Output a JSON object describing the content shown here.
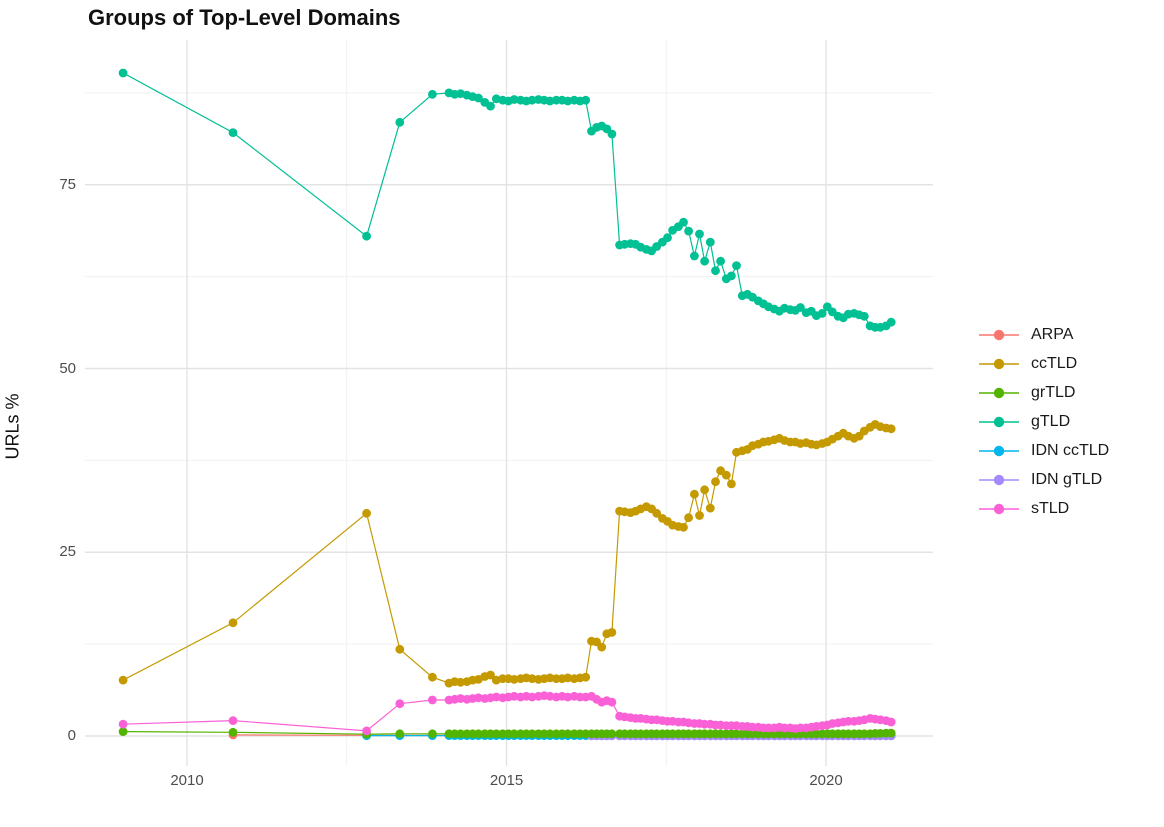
{
  "title": "Groups of Top-Level Domains",
  "axes": {
    "y_label": "URLs %",
    "x_ticks": [
      "2010",
      "2015",
      "2020"
    ],
    "x_tick_values": [
      2010,
      2015,
      2020
    ],
    "y_ticks": [
      "0",
      "25",
      "50",
      "75"
    ],
    "y_tick_values": [
      0,
      25,
      50,
      75
    ]
  },
  "chart_data": {
    "type": "line",
    "title": "Groups of Top-Level Domains",
    "xlabel": "",
    "ylabel": "URLs %",
    "x_range_shown": [
      2008.4,
      2021.7
    ],
    "y_range_shown": [
      -4.5,
      94.8
    ],
    "legend_position": "right",
    "grid": {
      "x_major": [
        2010,
        2015,
        2020
      ],
      "x_minor": [
        2012.5,
        2017.5
      ],
      "y_major": [
        0,
        25,
        50,
        75
      ],
      "y_minor": [
        12.5,
        37.5,
        62.5,
        87.5
      ]
    },
    "x": [
      2009.0,
      2010.72,
      2012.81,
      2013.33,
      2013.84,
      2014.1,
      2014.19,
      2014.28,
      2014.38,
      2014.47,
      2014.56,
      2014.66,
      2014.75,
      2014.84,
      2014.94,
      2015.03,
      2015.12,
      2015.22,
      2015.31,
      2015.4,
      2015.5,
      2015.59,
      2015.68,
      2015.78,
      2015.87,
      2015.96,
      2016.06,
      2016.15,
      2016.24,
      2016.33,
      2016.41,
      2016.49,
      2016.57,
      2016.65,
      2016.77,
      2016.85,
      2016.94,
      2017.02,
      2017.1,
      2017.19,
      2017.27,
      2017.35,
      2017.44,
      2017.52,
      2017.6,
      2017.69,
      2017.77,
      2017.85,
      2017.94,
      2018.02,
      2018.1,
      2018.19,
      2018.27,
      2018.35,
      2018.44,
      2018.52,
      2018.6,
      2018.69,
      2018.77,
      2018.85,
      2018.94,
      2019.02,
      2019.1,
      2019.19,
      2019.27,
      2019.35,
      2019.44,
      2019.52,
      2019.6,
      2019.69,
      2019.77,
      2019.85,
      2019.94,
      2020.02,
      2020.1,
      2020.19,
      2020.27,
      2020.35,
      2020.44,
      2020.52,
      2020.6,
      2020.69,
      2020.77,
      2020.85,
      2020.94,
      2021.02
    ],
    "draw_order": [
      "ARPA",
      "IDN ccTLD",
      "IDN gTLD",
      "grTLD",
      "gTLD",
      "ccTLD",
      "sTLD"
    ],
    "series": [
      {
        "name": "ARPA",
        "color": "#F8766D",
        "start_index": 1,
        "values": [
          0.15,
          0.1,
          0.1,
          0.1,
          0.1,
          0.1,
          0.1,
          0.1,
          0.1,
          0.1,
          0.1,
          0.1,
          0.1,
          0.1,
          0.1,
          0.1,
          0.1,
          0.1,
          0.1,
          0.1,
          0.1,
          0.1,
          0.1,
          0.1,
          0.1,
          0.1,
          0.1,
          0.1,
          0.1,
          0.1,
          0.1,
          0.1,
          0.1,
          0.1,
          0.1,
          0.1,
          0.1,
          0.1,
          0.1,
          0.1,
          0.1,
          0.1,
          0.1,
          0.1,
          0.1,
          0.1,
          0.1,
          0.1,
          0.1,
          0.1,
          0.1,
          0.1,
          0.1,
          0.1,
          0.1,
          0.1,
          0.1,
          0.1,
          0.1,
          0.1,
          0.1,
          0.1,
          0.1,
          0.1,
          0.1,
          0.1,
          0.1,
          0.1,
          0.1,
          0.1,
          0.1,
          0.1,
          0.1,
          0.1,
          0.1,
          0.1,
          0.1,
          0.1,
          0.1,
          0.1,
          0.1,
          0.1,
          0.1,
          0.1,
          0.1
        ]
      },
      {
        "name": "ccTLD",
        "color": "#C49A00",
        "start_index": 0,
        "values": [
          7.6,
          15.4,
          30.3,
          11.8,
          8.0,
          7.2,
          7.4,
          7.3,
          7.4,
          7.6,
          7.7,
          8.1,
          8.3,
          7.6,
          7.8,
          7.8,
          7.7,
          7.8,
          7.9,
          7.8,
          7.7,
          7.8,
          7.9,
          7.8,
          7.8,
          7.9,
          7.8,
          7.9,
          8.0,
          12.9,
          12.8,
          12.1,
          13.9,
          14.1,
          30.6,
          30.5,
          30.4,
          30.6,
          30.9,
          31.2,
          30.9,
          30.3,
          29.6,
          29.2,
          28.7,
          28.5,
          28.4,
          29.7,
          32.9,
          30.0,
          33.5,
          31.0,
          34.6,
          36.1,
          35.5,
          34.3,
          38.6,
          38.8,
          39.0,
          39.5,
          39.7,
          40.0,
          40.1,
          40.3,
          40.5,
          40.2,
          40.0,
          40.0,
          39.8,
          39.9,
          39.7,
          39.6,
          39.8,
          40.0,
          40.4,
          40.8,
          41.2,
          40.8,
          40.5,
          40.8,
          41.5,
          42.0,
          42.4,
          42.1,
          41.9,
          41.8
        ]
      },
      {
        "name": "grTLD",
        "color": "#53B400",
        "start_index": 0,
        "values": [
          0.6,
          0.5,
          0.25,
          0.3,
          0.3,
          0.3,
          0.3,
          0.3,
          0.3,
          0.3,
          0.3,
          0.3,
          0.3,
          0.3,
          0.3,
          0.3,
          0.3,
          0.3,
          0.3,
          0.3,
          0.3,
          0.3,
          0.3,
          0.3,
          0.3,
          0.3,
          0.3,
          0.3,
          0.3,
          0.3,
          0.3,
          0.3,
          0.3,
          0.3,
          0.3,
          0.3,
          0.3,
          0.3,
          0.3,
          0.3,
          0.3,
          0.3,
          0.3,
          0.3,
          0.3,
          0.3,
          0.3,
          0.3,
          0.3,
          0.3,
          0.3,
          0.3,
          0.3,
          0.3,
          0.3,
          0.3,
          0.3,
          0.3,
          0.3,
          0.3,
          0.3,
          0.3,
          0.3,
          0.3,
          0.3,
          0.3,
          0.3,
          0.3,
          0.3,
          0.3,
          0.3,
          0.3,
          0.3,
          0.3,
          0.3,
          0.3,
          0.3,
          0.3,
          0.3,
          0.3,
          0.3,
          0.3,
          0.35,
          0.35,
          0.4,
          0.4
        ]
      },
      {
        "name": "gTLD",
        "color": "#00C094",
        "start_index": 0,
        "values": [
          90.2,
          82.1,
          68.0,
          83.5,
          87.3,
          87.5,
          87.3,
          87.4,
          87.2,
          87.0,
          86.8,
          86.2,
          85.7,
          86.7,
          86.5,
          86.4,
          86.6,
          86.5,
          86.4,
          86.5,
          86.6,
          86.5,
          86.4,
          86.5,
          86.5,
          86.4,
          86.5,
          86.4,
          86.5,
          82.3,
          82.8,
          83.0,
          82.6,
          81.9,
          66.8,
          66.9,
          67.0,
          66.9,
          66.5,
          66.2,
          66.0,
          66.6,
          67.2,
          67.8,
          68.8,
          69.3,
          69.9,
          68.7,
          65.3,
          68.3,
          64.6,
          67.2,
          63.3,
          64.6,
          62.2,
          62.6,
          64.0,
          59.9,
          60.1,
          59.7,
          59.2,
          58.8,
          58.4,
          58.1,
          57.8,
          58.2,
          58.0,
          57.9,
          58.3,
          57.6,
          57.8,
          57.2,
          57.5,
          58.4,
          57.7,
          57.1,
          56.9,
          57.4,
          57.5,
          57.3,
          57.1,
          55.8,
          55.6,
          55.6,
          55.8,
          56.3
        ]
      },
      {
        "name": "IDN ccTLD",
        "color": "#00B6EB",
        "start_index": 2,
        "values": [
          0.05,
          0.05,
          0.05,
          0.05,
          0.05,
          0.05,
          0.05,
          0.05,
          0.05,
          0.05,
          0.05,
          0.05,
          0.05,
          0.05,
          0.05,
          0.05,
          0.05,
          0.05,
          0.05,
          0.05,
          0.05,
          0.05,
          0.05,
          0.05,
          0.05,
          0.05,
          0.05,
          0.05,
          0.05,
          0.05,
          0.05,
          0.05,
          0.05,
          0.05,
          0.05,
          0.05,
          0.05,
          0.05,
          0.05,
          0.05,
          0.05,
          0.05,
          0.05,
          0.05,
          0.05,
          0.05,
          0.05,
          0.05,
          0.05,
          0.05,
          0.05,
          0.05,
          0.05,
          0.05,
          0.05,
          0.05,
          0.05,
          0.05,
          0.05,
          0.05,
          0.05,
          0.05,
          0.05,
          0.05,
          0.05,
          0.05,
          0.05,
          0.05,
          0.05,
          0.05,
          0.05,
          0.05,
          0.05,
          0.05,
          0.05,
          0.05,
          0.05,
          0.05,
          0.05,
          0.05,
          0.05,
          0.05,
          0.05,
          0.05
        ]
      },
      {
        "name": "IDN gTLD",
        "color": "#A58AFF",
        "start_index": 29,
        "values": [
          0.02,
          0.02,
          0.02,
          0.02,
          0.02,
          0.02,
          0.02,
          0.02,
          0.02,
          0.02,
          0.02,
          0.02,
          0.02,
          0.02,
          0.02,
          0.02,
          0.02,
          0.02,
          0.02,
          0.02,
          0.02,
          0.02,
          0.02,
          0.02,
          0.02,
          0.02,
          0.02,
          0.02,
          0.02,
          0.02,
          0.02,
          0.02,
          0.02,
          0.02,
          0.02,
          0.02,
          0.02,
          0.02,
          0.02,
          0.02,
          0.02,
          0.02,
          0.02,
          0.02,
          0.02,
          0.02,
          0.02,
          0.02,
          0.02,
          0.02,
          0.02,
          0.02,
          0.02,
          0.02,
          0.02,
          0.02,
          0.02
        ]
      },
      {
        "name": "sTLD",
        "color": "#FB61D7",
        "start_index": 0,
        "values": [
          1.6,
          2.1,
          0.7,
          4.4,
          4.9,
          4.9,
          5.0,
          5.1,
          5.0,
          5.1,
          5.2,
          5.1,
          5.2,
          5.3,
          5.2,
          5.3,
          5.4,
          5.3,
          5.4,
          5.3,
          5.4,
          5.5,
          5.4,
          5.3,
          5.4,
          5.3,
          5.4,
          5.3,
          5.3,
          5.4,
          5.0,
          4.6,
          4.8,
          4.6,
          2.7,
          2.6,
          2.5,
          2.4,
          2.4,
          2.3,
          2.2,
          2.2,
          2.1,
          2.0,
          2.0,
          1.9,
          1.9,
          1.8,
          1.7,
          1.7,
          1.6,
          1.6,
          1.5,
          1.5,
          1.4,
          1.4,
          1.4,
          1.3,
          1.3,
          1.2,
          1.2,
          1.1,
          1.1,
          1.1,
          1.2,
          1.1,
          1.1,
          1.0,
          1.1,
          1.1,
          1.2,
          1.3,
          1.4,
          1.5,
          1.7,
          1.8,
          1.9,
          2.0,
          2.0,
          2.1,
          2.2,
          2.4,
          2.3,
          2.2,
          2.1,
          1.9
        ]
      }
    ]
  }
}
